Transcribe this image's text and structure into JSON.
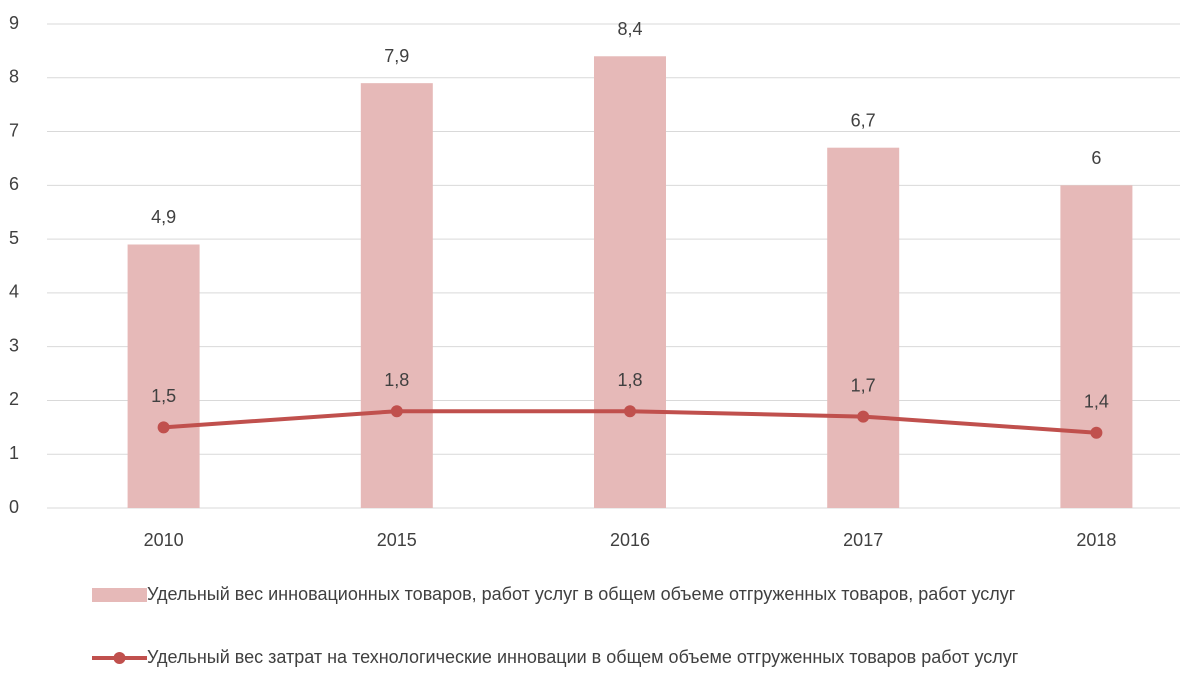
{
  "chart_data": {
    "type": "bar",
    "categories": [
      "2010",
      "2015",
      "2016",
      "2017",
      "2018"
    ],
    "series": [
      {
        "name": "Удельный вес инновационных товаров, работ услуг в общем объеме отгруженных товаров, работ услуг",
        "type": "bar",
        "color": "#e6b9b8",
        "values": [
          4.9,
          7.9,
          8.4,
          6.7,
          6
        ],
        "value_labels": [
          "4,9",
          "7,9",
          "8,4",
          "6,7",
          "6"
        ]
      },
      {
        "name": "Удельный вес затрат на технологические инновации в общем объеме отгруженных товаров работ услуг",
        "type": "line",
        "color": "#c0504d",
        "values": [
          1.5,
          1.8,
          1.8,
          1.7,
          1.4
        ],
        "value_labels": [
          "1,5",
          "1,8",
          "1,8",
          "1,7",
          "1,4"
        ]
      }
    ],
    "ylim": [
      0,
      9
    ],
    "yticks": [
      0,
      1,
      2,
      3,
      4,
      5,
      6,
      7,
      8,
      9
    ],
    "grid": true,
    "legend": "bottom"
  }
}
